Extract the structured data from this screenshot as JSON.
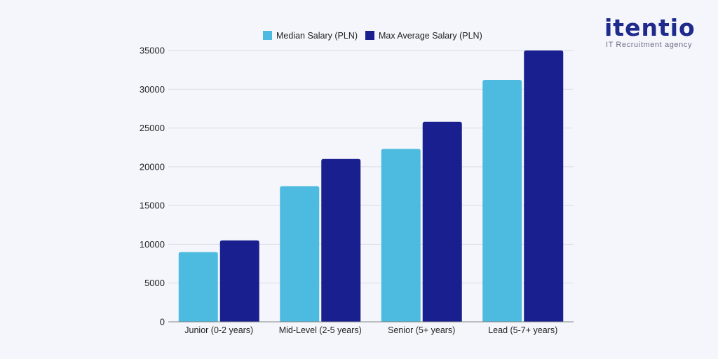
{
  "brand": {
    "name": "itentio",
    "tagline": "IT Recruitment agency",
    "color": "#1e2a8c"
  },
  "chart_data": {
    "type": "bar",
    "categories": [
      "Junior (0-2 years)",
      "Mid-Level (2-5 years)",
      "Senior (5+ years)",
      "Lead (5-7+ years)"
    ],
    "series": [
      {
        "name": "Median Salary (PLN)",
        "values": [
          9000,
          17500,
          22300,
          31200
        ],
        "color": "#4dbbdf"
      },
      {
        "name": "Max Average Salary (PLN)",
        "values": [
          10500,
          21000,
          25800,
          35000
        ],
        "color": "#1a1f8f"
      }
    ],
    "yticks": [
      0,
      5000,
      10000,
      15000,
      20000,
      25000,
      30000,
      35000
    ],
    "ylim": [
      0,
      35000
    ],
    "grid": true,
    "legend_position": "top-center",
    "title": "",
    "xlabel": "",
    "ylabel": ""
  }
}
